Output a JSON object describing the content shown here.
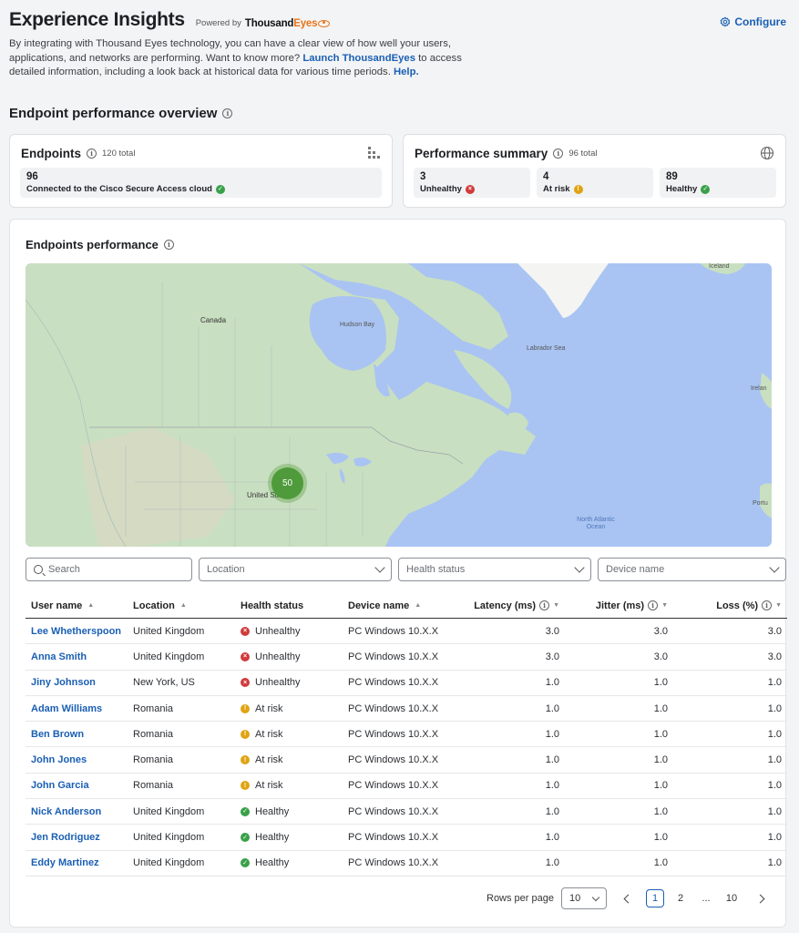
{
  "header": {
    "title": "Experience Insights",
    "powered_by": "Powered by",
    "brand_a": "Thousand",
    "brand_b": "Eyes",
    "configure_label": "Configure"
  },
  "intro": {
    "text_1": "By integrating with Thousand Eyes technology, you can have a clear view of how well your users, applications, and networks are performing. Want to know more? ",
    "link_launch": "Launch ThousandEyes",
    "text_2": " to access detailed information, including a look back at historical data for various time periods. ",
    "link_help": "Help."
  },
  "overview": {
    "title": "Endpoint performance overview"
  },
  "endpoints_card": {
    "title": "Endpoints",
    "total": "120 total",
    "count": "96",
    "label": "Connected to the Cisco Secure Access cloud"
  },
  "summary_card": {
    "title": "Performance summary",
    "total": "96 total",
    "items": [
      {
        "count": "3",
        "label": "Unhealthy",
        "status": "red"
      },
      {
        "count": "4",
        "label": "At risk",
        "status": "amber"
      },
      {
        "count": "89",
        "label": "Healthy",
        "status": "green"
      }
    ]
  },
  "perf": {
    "title": "Endpoints performance",
    "map": {
      "cluster_count": "50",
      "labels": {
        "canada": "Canada",
        "hudson": "Hudson Bay",
        "labrador": "Labrador Sea",
        "iceland": "Iceland",
        "ireland": "Irelan",
        "us": "United States",
        "atlantic": "North Atlantic Ocean",
        "portugal": "Portu"
      }
    }
  },
  "filters": {
    "search_placeholder": "Search",
    "location": "Location",
    "health": "Health status",
    "device": "Device name"
  },
  "table": {
    "headers": {
      "user": "User name",
      "location": "Location",
      "health": "Health status",
      "device": "Device name",
      "latency": "Latency (ms)",
      "jitter": "Jitter (ms)",
      "loss": "Loss (%)"
    },
    "rows": [
      {
        "user": "Lee Whetherspoon",
        "location": "United Kingdom",
        "health": "Unhealthy",
        "status": "red",
        "device": "PC Windows 10.X.X",
        "latency": "3.0",
        "jitter": "3.0",
        "loss": "3.0"
      },
      {
        "user": "Anna Smith",
        "location": "United Kingdom",
        "health": "Unhealthy",
        "status": "red",
        "device": "PC Windows 10.X.X",
        "latency": "3.0",
        "jitter": "3.0",
        "loss": "3.0"
      },
      {
        "user": "Jiny Johnson",
        "location": "New York, US",
        "health": "Unhealthy",
        "status": "red",
        "device": "PC Windows 10.X.X",
        "latency": "1.0",
        "jitter": "1.0",
        "loss": "1.0"
      },
      {
        "user": "Adam Williams",
        "location": "Romania",
        "health": "At risk",
        "status": "amber",
        "device": "PC Windows 10.X.X",
        "latency": "1.0",
        "jitter": "1.0",
        "loss": "1.0"
      },
      {
        "user": "Ben Brown",
        "location": "Romania",
        "health": "At risk",
        "status": "amber",
        "device": "PC Windows 10.X.X",
        "latency": "1.0",
        "jitter": "1.0",
        "loss": "1.0"
      },
      {
        "user": "John Jones",
        "location": "Romania",
        "health": "At risk",
        "status": "amber",
        "device": "PC Windows 10.X.X",
        "latency": "1.0",
        "jitter": "1.0",
        "loss": "1.0"
      },
      {
        "user": "John Garcia",
        "location": "Romania",
        "health": "At risk",
        "status": "amber",
        "device": "PC Windows 10.X.X",
        "latency": "1.0",
        "jitter": "1.0",
        "loss": "1.0"
      },
      {
        "user": "Nick Anderson",
        "location": "United Kingdom",
        "health": "Healthy",
        "status": "green",
        "device": "PC Windows 10.X.X",
        "latency": "1.0",
        "jitter": "1.0",
        "loss": "1.0"
      },
      {
        "user": "Jen Rodriguez",
        "location": "United Kingdom",
        "health": "Healthy",
        "status": "green",
        "device": "PC Windows 10.X.X",
        "latency": "1.0",
        "jitter": "1.0",
        "loss": "1.0"
      },
      {
        "user": "Eddy Martinez",
        "location": "United Kingdom",
        "health": "Healthy",
        "status": "green",
        "device": "PC Windows 10.X.X",
        "latency": "1.0",
        "jitter": "1.0",
        "loss": "1.0"
      }
    ]
  },
  "pagination": {
    "rows_per_page_label": "Rows per page",
    "rows_per_page": "10",
    "current": "1",
    "next_page": "2",
    "ellipsis": "...",
    "last": "10"
  },
  "colors": {
    "accent": "#1a5fb4",
    "healthy": "#3aa04a",
    "unhealthy": "#d13b3b",
    "at_risk": "#e0a412"
  }
}
